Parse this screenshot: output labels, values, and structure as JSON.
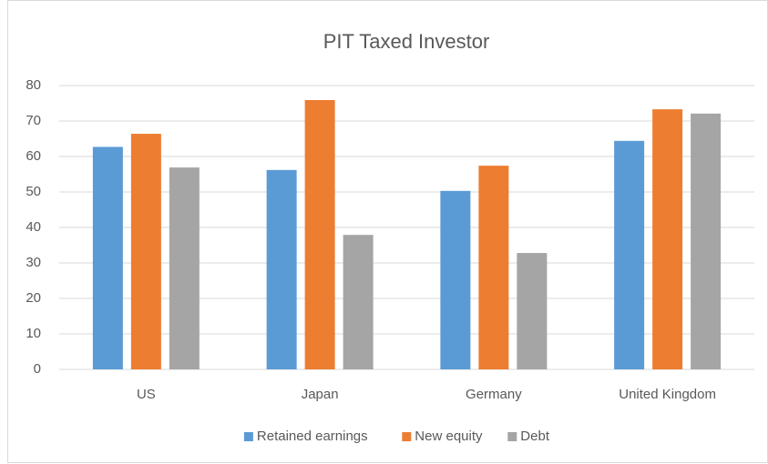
{
  "chart_data": {
    "type": "bar",
    "title": "PIT Taxed Investor",
    "categories": [
      "US",
      "Japan",
      "Germany",
      "United Kingdom"
    ],
    "series": [
      {
        "name": "Retained earnings",
        "color": "#5b9bd5",
        "values": [
          62.7,
          56.2,
          50.3,
          64.4
        ]
      },
      {
        "name": "New equity",
        "color": "#ed7d31",
        "values": [
          66.4,
          75.9,
          57.4,
          73.3
        ]
      },
      {
        "name": "Debt",
        "color": "#a5a5a5",
        "values": [
          56.9,
          37.9,
          32.8,
          72.1
        ]
      }
    ],
    "ylim": [
      0,
      80
    ],
    "yticks": [
      0,
      10,
      20,
      30,
      40,
      50,
      60,
      70,
      80
    ],
    "grid": true,
    "legend": "bottom"
  }
}
